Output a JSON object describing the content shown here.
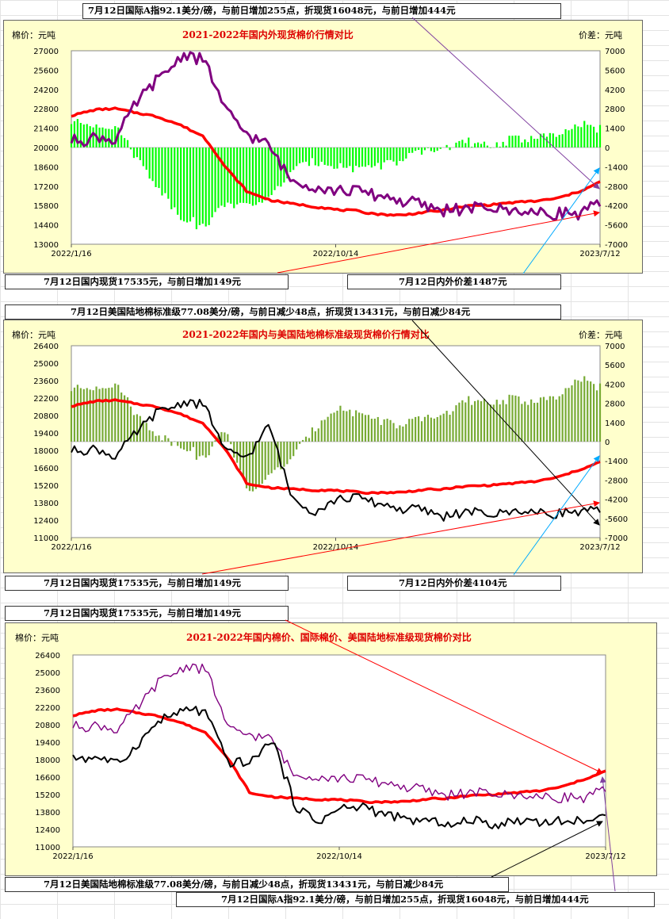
{
  "notes": {
    "n1": "7月12日国际A指92.1美分/磅，与前日增加255点，折现货16048元，与前日增加444元",
    "n2": "7月12日国内现货17535元，与前日增加149元",
    "n3": "7月12日内外价差1487元",
    "n4": "7月12日美国陆地棉标准级77.08美分/磅，与前日减少48点，折现货13431元，与前日减少84元",
    "n5": "7月12日国内现货17535元，与前日增加149元",
    "n6": "7月12日内外价差4104元",
    "n7": "7月12日国内现货17535元，与前日增加149元",
    "n8": "7月12日美国陆地棉标准级77.08美分/磅，与前日减少48点，折现货13431元，与前日减少84元",
    "n9": "7月12日国际A指92.1美分/磅，与前日增加255点，折现货16048元，与前日增加444元"
  },
  "colors": {
    "domestic": "#ff0000",
    "intl": "#800080",
    "us": "#000000",
    "spread1": "#00ff00",
    "spread2": "#77aa33",
    "arrow_red": "#ff0000",
    "arrow_blue": "#00aaff",
    "arrow_black": "#000000"
  },
  "chart_data": [
    {
      "type": "line",
      "title": "2021-2022年国内外现货棉价行情对比",
      "ylabel": "棉价：元吨",
      "y2label": "价差：元吨",
      "x_ticks": [
        "2022/1/16",
        "2022/10/14",
        "2023/7/12"
      ],
      "y_ticks": [
        "27000",
        "25600",
        "24200",
        "22800",
        "21400",
        "20000",
        "18600",
        "17200",
        "15800",
        "14400",
        "13000"
      ],
      "y2_ticks": [
        "7000",
        "5600",
        "4200",
        "2800",
        "1400",
        "0",
        "-1400",
        "-2800",
        "-4200",
        "-5600",
        "-7000"
      ],
      "ylim": [
        13000,
        27000
      ],
      "y2lim": [
        -7000,
        7000
      ],
      "series": [
        {
          "key": "domestic",
          "kind": "line",
          "axis": "left",
          "values": [
            22300,
            22700,
            22800,
            22500,
            22200,
            21600,
            20800,
            18600,
            16800,
            16200,
            15950,
            15750,
            15500,
            15400,
            15150,
            15100,
            15300,
            15500,
            15800,
            15850,
            16000,
            16100,
            16300,
            16800,
            17500
          ]
        },
        {
          "key": "intl",
          "kind": "line",
          "axis": "left",
          "values": [
            20400,
            20900,
            20700,
            23200,
            25100,
            26800,
            26500,
            22600,
            21000,
            19900,
            17500,
            17100,
            16800,
            16900,
            16500,
            16100,
            15700,
            15450,
            15500,
            15600,
            15450,
            15300,
            15400,
            15250,
            16050
          ]
        },
        {
          "key": "spread",
          "kind": "bar",
          "axis": "right",
          "values": [
            1900,
            1800,
            1600,
            -700,
            -2900,
            -5100,
            -5700,
            -4000,
            -4200,
            -3700,
            -1550,
            -900,
            -1300,
            -1500,
            -1350,
            -1000,
            -400,
            50,
            300,
            250,
            550,
            800,
            900,
            1550,
            1487
          ]
        }
      ]
    },
    {
      "type": "line",
      "title": "2021-2022年国内与美国陆地棉标准级现货棉价行情对比",
      "ylabel": "棉价：元吨",
      "y2label": "价差：元吨",
      "x_ticks": [
        "2022/1/16",
        "2022/10/14",
        "2023/7/12"
      ],
      "y_ticks": [
        "26400",
        "25000",
        "23600",
        "22200",
        "20800",
        "19400",
        "18000",
        "16600",
        "15200",
        "13800",
        "12400",
        "11000"
      ],
      "y2_ticks": [
        "7000",
        "5600",
        "4200",
        "2800",
        "1400",
        "0",
        "-1400",
        "-2800",
        "-4200",
        "-5600",
        "-7000"
      ],
      "ylim": [
        11000,
        27500
      ],
      "y2lim": [
        -7000,
        7000
      ],
      "series": [
        {
          "key": "domestic",
          "kind": "line",
          "axis": "left",
          "values": [
            22300,
            22700,
            22800,
            22500,
            22200,
            21600,
            20800,
            18600,
            15600,
            15300,
            15200,
            15100,
            15050,
            14900,
            14850,
            14900,
            15100,
            15200,
            15450,
            15500,
            15650,
            15800,
            16150,
            16800,
            17500
          ]
        },
        {
          "key": "us",
          "kind": "line",
          "axis": "left",
          "values": [
            18400,
            18800,
            18100,
            20000,
            22000,
            22700,
            22600,
            18300,
            18000,
            20500,
            14400,
            13100,
            14200,
            14500,
            13900,
            13400,
            13300,
            12800,
            13200,
            12900,
            13300,
            13200,
            13200,
            13300,
            13431
          ]
        },
        {
          "key": "spread",
          "kind": "bar",
          "axis": "right",
          "values": [
            3900,
            4100,
            4300,
            2000,
            500,
            -300,
            -1200,
            1000,
            -3800,
            -2500,
            -1100,
            1000,
            2500,
            2100,
            1500,
            1100,
            1600,
            2100,
            2900,
            3000,
            3100,
            3000,
            3200,
            4500,
            4104
          ]
        }
      ]
    },
    {
      "type": "line",
      "title": "2021-2022年国内棉价、国际棉价、美国陆地标准级现货棉价对比",
      "ylabel": "棉价：元吨",
      "x_ticks": [
        "2022/1/16",
        "2022/10/14",
        "2023/7/12"
      ],
      "y_ticks": [
        "26400",
        "25000",
        "23600",
        "22200",
        "20800",
        "19400",
        "18000",
        "16600",
        "15200",
        "13800",
        "12400",
        "11000"
      ],
      "ylim": [
        11000,
        27500
      ],
      "series": [
        {
          "key": "domestic",
          "kind": "line",
          "axis": "left",
          "values": [
            22300,
            22700,
            22800,
            22500,
            22200,
            21600,
            20800,
            18600,
            15600,
            15300,
            15200,
            15100,
            15050,
            14900,
            14850,
            14900,
            15100,
            15200,
            15450,
            15500,
            15650,
            15800,
            16150,
            16800,
            17500
          ]
        },
        {
          "key": "intl",
          "kind": "line",
          "axis": "left",
          "values": [
            21300,
            21600,
            21200,
            23000,
            25500,
            26600,
            26400,
            21000,
            20700,
            20000,
            17000,
            17000,
            16800,
            16900,
            16500,
            16100,
            15700,
            15450,
            15600,
            15500,
            15450,
            15300,
            15400,
            15250,
            16050
          ]
        },
        {
          "key": "us",
          "kind": "line",
          "axis": "left",
          "values": [
            18400,
            18800,
            18100,
            20000,
            22000,
            22700,
            22600,
            18300,
            18000,
            20500,
            14400,
            13100,
            14200,
            14500,
            13900,
            13400,
            13300,
            12800,
            13200,
            12900,
            13300,
            13200,
            13200,
            13300,
            13431
          ]
        }
      ]
    }
  ]
}
